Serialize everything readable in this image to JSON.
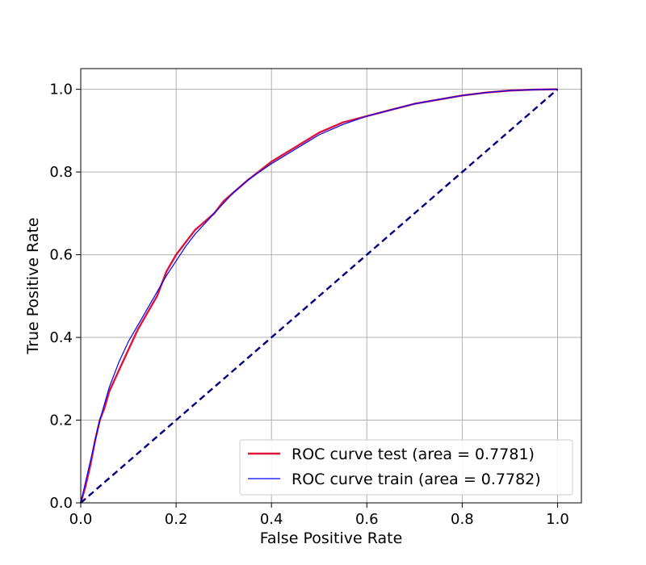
{
  "chart_data": {
    "type": "line",
    "title": "",
    "xlabel": "False Positive Rate",
    "ylabel": "True Positive Rate",
    "xlim": [
      0.0,
      1.05
    ],
    "ylim": [
      0.0,
      1.05
    ],
    "xticks": [
      "0.0",
      "0.2",
      "0.4",
      "0.6",
      "0.8",
      "1.0"
    ],
    "yticks": [
      "0.0",
      "0.2",
      "0.4",
      "0.6",
      "0.8",
      "1.0"
    ],
    "grid": true,
    "legend_position": "lower-right",
    "series": [
      {
        "name": "ROC curve test (area = 0.7781)",
        "color": "#dc143c",
        "x": [
          0.0,
          0.01,
          0.02,
          0.03,
          0.04,
          0.05,
          0.06,
          0.08,
          0.1,
          0.12,
          0.14,
          0.16,
          0.17,
          0.18,
          0.2,
          0.22,
          0.24,
          0.26,
          0.28,
          0.3,
          0.32,
          0.35,
          0.4,
          0.45,
          0.5,
          0.55,
          0.6,
          0.65,
          0.7,
          0.75,
          0.8,
          0.85,
          0.9,
          0.95,
          1.0
        ],
        "y": [
          0.0,
          0.04,
          0.09,
          0.15,
          0.2,
          0.23,
          0.27,
          0.32,
          0.37,
          0.42,
          0.46,
          0.5,
          0.53,
          0.56,
          0.6,
          0.63,
          0.66,
          0.68,
          0.7,
          0.73,
          0.75,
          0.78,
          0.825,
          0.86,
          0.895,
          0.92,
          0.935,
          0.95,
          0.965,
          0.975,
          0.985,
          0.992,
          0.997,
          0.999,
          1.0
        ]
      },
      {
        "name": "ROC curve train (area = 0.7782)",
        "color": "#0000ff",
        "x": [
          0.0,
          0.01,
          0.02,
          0.03,
          0.04,
          0.05,
          0.06,
          0.08,
          0.1,
          0.12,
          0.14,
          0.16,
          0.18,
          0.2,
          0.22,
          0.24,
          0.26,
          0.28,
          0.3,
          0.32,
          0.35,
          0.4,
          0.45,
          0.5,
          0.55,
          0.6,
          0.65,
          0.7,
          0.75,
          0.8,
          0.85,
          0.9,
          0.95,
          1.0
        ],
        "y": [
          0.0,
          0.05,
          0.1,
          0.15,
          0.2,
          0.24,
          0.28,
          0.34,
          0.39,
          0.43,
          0.47,
          0.51,
          0.55,
          0.585,
          0.62,
          0.65,
          0.675,
          0.7,
          0.725,
          0.75,
          0.78,
          0.82,
          0.855,
          0.89,
          0.915,
          0.935,
          0.95,
          0.965,
          0.975,
          0.985,
          0.992,
          0.997,
          0.999,
          1.0
        ]
      },
      {
        "name": "",
        "color": "#000080",
        "style": "dashed",
        "x": [
          0.0,
          1.0
        ],
        "y": [
          0.0,
          1.0
        ]
      }
    ]
  }
}
